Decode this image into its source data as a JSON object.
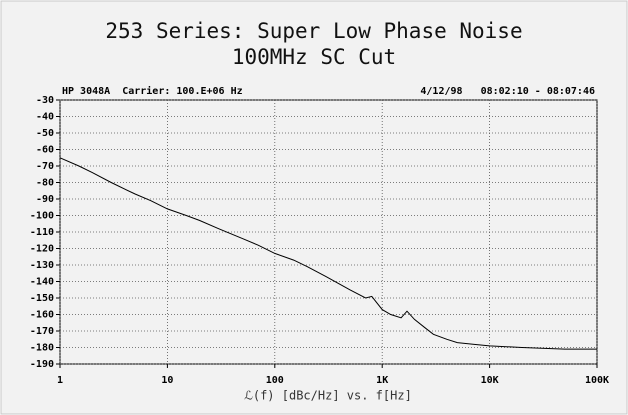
{
  "chart_data": {
    "type": "line",
    "title": "253 Series: Super Low Phase Noise",
    "subtitle": "100MHz SC Cut",
    "annotations": [
      "HP 3048A  Carrier: 100.E+06 Hz",
      "4/12/98   08:02:10 - 08:07:46"
    ],
    "x_label": "ℒ(f) [dBc/Hz] vs. f[Hz]",
    "x_scale": "log",
    "x": [
      1,
      1.5,
      2,
      3,
      4,
      5,
      7,
      10,
      15,
      20,
      30,
      50,
      70,
      100,
      150,
      200,
      300,
      500,
      700,
      800,
      1000,
      1200,
      1500,
      1700,
      2000,
      2500,
      3000,
      4000,
      5000,
      7000,
      10000,
      20000,
      50000,
      100000
    ],
    "values": [
      -65,
      -70,
      -74,
      -80,
      -84,
      -87,
      -91,
      -96,
      -100,
      -103,
      -108,
      -114,
      -118,
      -123,
      -127,
      -131,
      -137,
      -145,
      -150,
      -149,
      -157,
      -160,
      -162,
      -158,
      -163,
      -168,
      -172,
      -175,
      -177,
      -178,
      -179,
      -180,
      -181,
      -181
    ],
    "color": "#000000",
    "xlim": [
      1,
      100000
    ],
    "xticks": [
      1,
      10,
      100,
      {
        "value": 1000,
        "label": "1K"
      },
      {
        "value": 10000,
        "label": "10K"
      },
      {
        "value": 100000,
        "label": "100K"
      }
    ],
    "ylim": [
      -190,
      -30
    ],
    "yticks": [
      -30,
      -40,
      -50,
      -60,
      -70,
      -80,
      -90,
      -100,
      -110,
      -120,
      -130,
      -140,
      -150,
      -160,
      -170,
      -180,
      -190
    ],
    "grid": true
  }
}
